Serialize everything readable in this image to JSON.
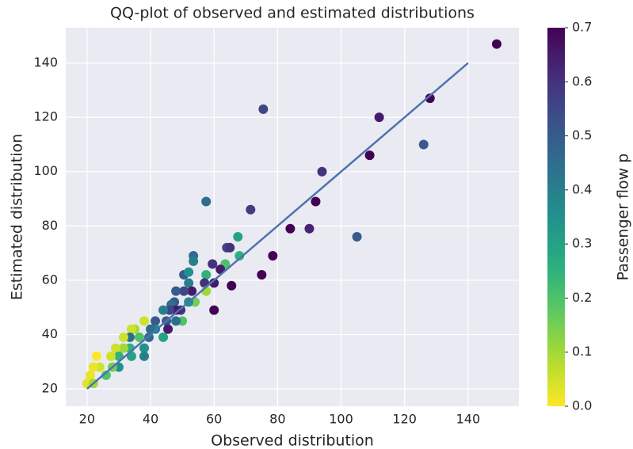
{
  "chart_data": {
    "type": "scatter",
    "title": "QQ-plot of observed and estimated distributions",
    "x_label": "Observed distribution",
    "y_label": "Estimated distribution",
    "colorbar_label": "Passenger flow p",
    "colormap": "viridis_r",
    "grid": true,
    "xlim": [
      13.3,
      156
    ],
    "ylim": [
      13.6,
      153
    ],
    "xticks": [
      20,
      40,
      60,
      80,
      100,
      120,
      140
    ],
    "yticks": [
      20,
      40,
      60,
      80,
      100,
      120,
      140
    ],
    "clim": [
      0,
      0.7
    ],
    "cticks": [
      {
        "value": 0,
        "label": "0.0"
      },
      0.1,
      0.2,
      0.3,
      0.4,
      0.5,
      0.6,
      0.7
    ],
    "x": [
      149,
      128,
      112,
      126,
      109,
      94,
      92,
      90,
      105,
      84,
      75.5,
      71.5,
      78.5,
      75,
      57.5,
      67.5,
      68,
      64,
      65,
      63.5,
      62,
      59.5,
      65.5,
      60,
      60,
      57.5,
      57,
      57.5,
      53.5,
      53.5,
      50.5,
      52,
      52,
      53,
      50.5,
      48,
      54,
      52,
      49.5,
      47.5,
      46.5,
      48,
      46,
      44,
      50,
      48,
      45,
      45.5,
      44,
      41.5,
      41.5,
      40,
      39.5,
      38,
      36.5,
      35,
      34,
      33.5,
      31.5,
      38,
      33.5,
      34,
      38,
      31.5,
      29,
      30,
      27.5,
      30,
      28,
      24,
      26,
      23,
      22,
      21,
      20,
      22
    ],
    "values": [
      147,
      127,
      120,
      110,
      106,
      100,
      89,
      79,
      76,
      79,
      123,
      86,
      69,
      62,
      89,
      76,
      69,
      72,
      72,
      66,
      64,
      66,
      58,
      59,
      49,
      62,
      59,
      56,
      69,
      67,
      62,
      63,
      59,
      56,
      56,
      56,
      52,
      52,
      49,
      52,
      51,
      49,
      49,
      49,
      45,
      45,
      45,
      42,
      39,
      45,
      42,
      42,
      39,
      45,
      39,
      42,
      42,
      39,
      39,
      35,
      35,
      32,
      32,
      35,
      35,
      32,
      32,
      28,
      28,
      28,
      25,
      32,
      28,
      25,
      22,
      22
    ],
    "color_values": [
      0.7,
      0.7,
      0.65,
      0.5,
      0.7,
      0.6,
      0.7,
      0.63,
      0.5,
      0.7,
      0.55,
      0.58,
      0.7,
      0.7,
      0.45,
      0.3,
      0.25,
      0.55,
      0.6,
      0.2,
      0.65,
      0.6,
      0.7,
      0.65,
      0.7,
      0.25,
      0.6,
      0.1,
      0.45,
      0.4,
      0.5,
      0.35,
      0.4,
      0.65,
      0.55,
      0.5,
      0.15,
      0.35,
      0.6,
      0.5,
      0.45,
      0.65,
      0.55,
      0.4,
      0.2,
      0.45,
      0.5,
      0.65,
      0.3,
      0.5,
      0.4,
      0.45,
      0.45,
      0.05,
      0.2,
      0.1,
      0.05,
      0.45,
      0.05,
      0.35,
      0.25,
      0.3,
      0.4,
      0.1,
      0.05,
      0.25,
      0.05,
      0.35,
      0.15,
      0.05,
      0.2,
      0,
      0.02,
      0.02,
      0.03,
      0.1
    ],
    "line": {
      "x": [
        20,
        140
      ],
      "values": [
        20,
        140
      ],
      "color": "#4c72b0"
    }
  }
}
